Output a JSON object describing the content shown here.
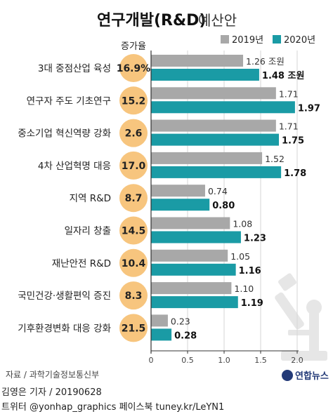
{
  "chart_data": {
    "type": "bar",
    "title": "연구개발(R&D)",
    "subtitle": "예산안",
    "rate_header": "증가율",
    "categories": [
      "3대 중점산업 육성",
      "연구자 주도 기초연구",
      "중소기업 혁신역량 강화",
      "4차 산업혁명 대응",
      "지역 R&D",
      "일자리 창출",
      "재난안전 R&D",
      "국민건강·생활편익 증진",
      "기후환경변화 대응 강화"
    ],
    "growth_rates": [
      "16.9%",
      "15.2",
      "2.6",
      "17.0",
      "8.7",
      "14.5",
      "10.4",
      "8.3",
      "21.5"
    ],
    "series": [
      {
        "name": "2019년",
        "color": "#a8a8a8",
        "values": [
          1.26,
          1.71,
          1.71,
          1.52,
          0.74,
          1.08,
          1.05,
          1.1,
          0.23
        ],
        "labels": [
          "1.26 조원",
          "1.71",
          "1.71",
          "1.52",
          "0.74",
          "1.08",
          "1.05",
          "1.10",
          "0.23"
        ]
      },
      {
        "name": "2020년",
        "color": "#1a9ba5",
        "values": [
          1.48,
          1.97,
          1.75,
          1.78,
          0.8,
          1.23,
          1.16,
          1.19,
          0.28
        ],
        "labels": [
          "1.48 조원",
          "1.97",
          "1.75",
          "1.78",
          "0.80",
          "1.23",
          "1.16",
          "1.19",
          "0.28"
        ]
      }
    ],
    "xlim": [
      0,
      2.0
    ],
    "x_ticks": [
      {
        "value": 0,
        "label": "0"
      },
      {
        "value": 0.5,
        "label": "0.5"
      },
      {
        "value": 1.0,
        "label": "1.0"
      },
      {
        "value": 1.5,
        "label": "1.5"
      },
      {
        "value": 2.0,
        "label": "2.0"
      }
    ],
    "grid": true,
    "legend": "top-right"
  },
  "colors": {
    "rate_circle": "#f7c57e",
    "illustration": "#e6e6e6",
    "logo": "#233a78"
  },
  "footer": {
    "source": "자료 / 과학기술정보통신부",
    "credit": "김영은 기자 / 20190628",
    "social": "트위터 @yonhap_graphics  페이스북 tuney.kr/LeYN1",
    "logo_text": "연합뉴스"
  }
}
